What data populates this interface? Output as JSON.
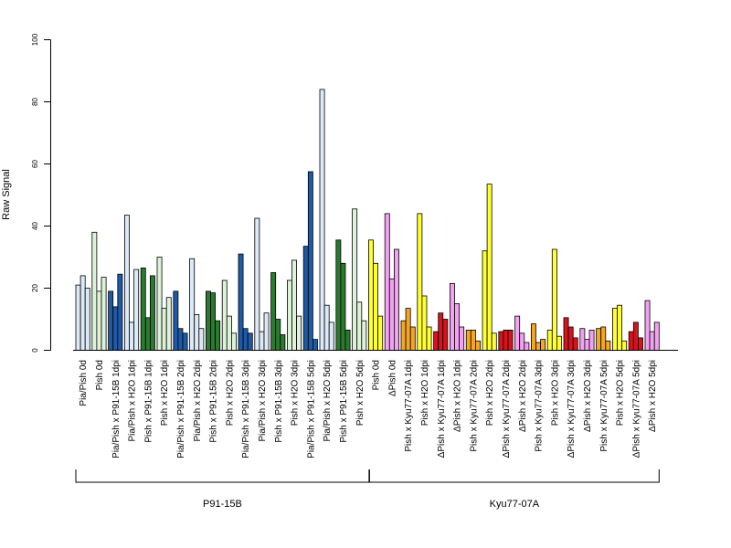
{
  "chart_data": {
    "type": "bar",
    "ylabel": "Raw Signal",
    "ylim": [
      0,
      100
    ],
    "yticks": [
      0,
      20,
      40,
      60,
      80,
      100
    ],
    "grid": false,
    "palette": {
      "pale_blue": "#dce9f7",
      "blue": "#1f5aa6",
      "pale_green": "#ddf2d8",
      "green": "#2a7a2f",
      "yellow": "#ffff33",
      "pink": "#f2a2f0",
      "orange": "#f5a623",
      "red": "#d7141e"
    },
    "categories": [
      {
        "label": "Pia/Pish 0d",
        "color": "pale_blue",
        "values": [
          21,
          24,
          20
        ]
      },
      {
        "label": "Pish 0d",
        "color": "pale_green",
        "values": [
          38,
          19,
          23.5
        ]
      },
      {
        "label": "Pia/Pish x P91-15B 1dpi",
        "color": "blue",
        "values": [
          19,
          14,
          24.5
        ]
      },
      {
        "label": "Pia/Pish x H2O 1dpi",
        "color": "pale_blue",
        "values": [
          43.5,
          9,
          26
        ]
      },
      {
        "label": "Pish x P91-15B 1dpi",
        "color": "green",
        "values": [
          26.5,
          10.5,
          24
        ]
      },
      {
        "label": "Pish x H2O 1dpi",
        "color": "pale_green",
        "values": [
          30,
          13.5,
          17
        ]
      },
      {
        "label": "Pia/Pish x P91-15B 2dpi",
        "color": "blue",
        "values": [
          19,
          7,
          5.5
        ]
      },
      {
        "label": "Pia/Pish x H2O 2dpi",
        "color": "pale_blue",
        "values": [
          29.5,
          11.5,
          7
        ]
      },
      {
        "label": "Pish x P91-15B 2dpi",
        "color": "green",
        "values": [
          19,
          18.5,
          9.5
        ]
      },
      {
        "label": "Pish x H2O 2dpi",
        "color": "pale_green",
        "values": [
          22.5,
          11,
          5.5
        ]
      },
      {
        "label": "Pia/Pish x P91-15B 3dpi",
        "color": "blue",
        "values": [
          31,
          7,
          5.5
        ]
      },
      {
        "label": "Pia/Pish x H2O 3dpi",
        "color": "pale_blue",
        "values": [
          42.5,
          6,
          12
        ]
      },
      {
        "label": "Pish x P91-15B 3dpi",
        "color": "green",
        "values": [
          25,
          10,
          5
        ]
      },
      {
        "label": "Pish x H2O 3dpi",
        "color": "pale_green",
        "values": [
          22.5,
          29,
          11
        ]
      },
      {
        "label": "Pia/Pish x P91-15B 5dpi",
        "color": "blue",
        "values": [
          33.5,
          57.5,
          3.5
        ]
      },
      {
        "label": "Pia/Pish x H2O 5dpi",
        "color": "pale_blue",
        "values": [
          84,
          14.5,
          9
        ]
      },
      {
        "label": "Pish x P91-15B 5dpi",
        "color": "green",
        "values": [
          35.5,
          28,
          6.5
        ]
      },
      {
        "label": "Pish x H2O 5dpi",
        "color": "pale_green",
        "values": [
          45.5,
          15.5,
          9.5
        ]
      },
      {
        "label": "Pish 0d",
        "color": "yellow",
        "values": [
          35.5,
          28,
          11
        ]
      },
      {
        "label": "ΔPish 0d",
        "color": "pink",
        "values": [
          44,
          23,
          32.5
        ]
      },
      {
        "label": "Pish x Kyu77-07A 1dpi",
        "color": "orange",
        "values": [
          9.5,
          13.5,
          7.5
        ]
      },
      {
        "label": "Pish x H2O 1dpi",
        "color": "yellow",
        "values": [
          44,
          17.5,
          7.5
        ]
      },
      {
        "label": "ΔPish x Kyu77-07A 1dpi",
        "color": "red",
        "values": [
          6,
          12,
          10
        ]
      },
      {
        "label": "ΔPish x H2O 1dpi",
        "color": "pink",
        "values": [
          21.5,
          15,
          7.5
        ]
      },
      {
        "label": "Pish x Kyu77-07A 2dpi",
        "color": "orange",
        "values": [
          6.5,
          6.5,
          3
        ]
      },
      {
        "label": "Pish x H2O 2dpi",
        "color": "yellow",
        "values": [
          32,
          53.5,
          5.5
        ]
      },
      {
        "label": "ΔPish x Kyu77-07A 2dpi",
        "color": "red",
        "values": [
          6,
          6.5,
          6.5
        ]
      },
      {
        "label": "ΔPish x H2O 2dpi",
        "color": "pink",
        "values": [
          11,
          5.5,
          2.5
        ]
      },
      {
        "label": "Pish x Kyu77-07A 3dpi",
        "color": "orange",
        "values": [
          8.5,
          2.5,
          3.5
        ]
      },
      {
        "label": "Pish x H2O 3dpi",
        "color": "yellow",
        "values": [
          6.5,
          32.5,
          4.5
        ]
      },
      {
        "label": "ΔPish x Kyu77-07A 3dpi",
        "color": "red",
        "values": [
          10.5,
          7.5,
          4
        ]
      },
      {
        "label": "ΔPish x H2O 3dpi",
        "color": "pink",
        "values": [
          7,
          3.5,
          6.5
        ]
      },
      {
        "label": "Pish x Kyu77-07A 5dpi",
        "color": "orange",
        "values": [
          7,
          7.5,
          3
        ]
      },
      {
        "label": "Pish x H2O 5dpi",
        "color": "yellow",
        "values": [
          13.5,
          14.5,
          3
        ]
      },
      {
        "label": "ΔPish x Kyu77-07A 5dpi",
        "color": "red",
        "values": [
          6,
          9,
          4
        ]
      },
      {
        "label": "ΔPish x H2O 5dpi",
        "color": "pink",
        "values": [
          16,
          6,
          9
        ]
      }
    ],
    "groups": [
      {
        "label": "P91-15B",
        "from": 0,
        "to": 17
      },
      {
        "label": "Kyu77-07A",
        "from": 18,
        "to": 35
      }
    ]
  }
}
